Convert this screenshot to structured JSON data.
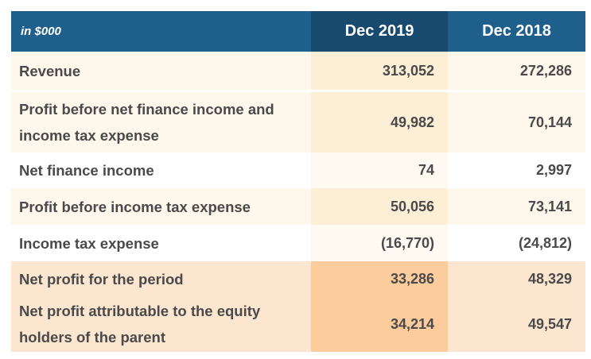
{
  "header": {
    "unit_label": "in $000",
    "col_2019": "Dec 2019",
    "col_2018": "Dec 2018"
  },
  "rows": [
    {
      "label": "Revenue",
      "v2019": "313,052",
      "v2018": "272,286"
    },
    {
      "label": "Profit before net finance income and income tax expense",
      "v2019": "49,982",
      "v2018": "70,144"
    },
    {
      "label": "Net finance income",
      "v2019": "74",
      "v2018": "2,997"
    },
    {
      "label": "Profit before income tax expense",
      "v2019": "50,056",
      "v2018": "73,141"
    },
    {
      "label": "Income tax expense",
      "v2019": "(16,770)",
      "v2018": "(24,812)"
    },
    {
      "label": "Net profit for the period",
      "v2019": "33,286",
      "v2018": "48,329"
    },
    {
      "label": "Net profit attributable to the equity holders of the parent",
      "v2019": "34,214",
      "v2018": "49,547"
    }
  ],
  "colors": {
    "header_blue": "#1e5f8c",
    "header_dark_blue": "#184a70",
    "highlight_peach": "#fccc9c",
    "light_cream": "#fef7ec"
  }
}
